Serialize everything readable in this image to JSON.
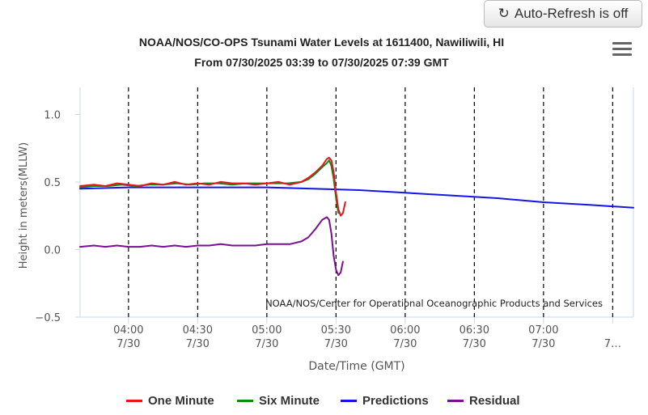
{
  "toolbar": {
    "auto_refresh_label": "Auto-Refresh is off",
    "refresh_icon": "refresh-icon",
    "menu_icon": "hamburger-menu-icon"
  },
  "chart_data": {
    "type": "line",
    "title": "NOAA/NOS/CO-OPS Tsunami Water Levels at 1611400, Nawiliwili, HI",
    "subtitle": "From 07/30/2025 03:39 to 07/30/2025 07:39 GMT",
    "xlabel": "Date/Time (GMT)",
    "ylabel": "Height in meters(MLLW)",
    "ylim": [
      -0.5,
      1.2
    ],
    "xlim": [
      "03:39",
      "07:39"
    ],
    "yticks": [
      {
        "value": -0.5,
        "label": "−0.5"
      },
      {
        "value": 0.0,
        "label": "0.0"
      },
      {
        "value": 0.5,
        "label": "0.5"
      },
      {
        "value": 1.0,
        "label": "1.0"
      }
    ],
    "xticks": [
      {
        "time": "04:00",
        "line1": "04:00",
        "line2": "7/30"
      },
      {
        "time": "04:30",
        "line1": "04:30",
        "line2": "7/30"
      },
      {
        "time": "05:00",
        "line1": "05:00",
        "line2": "7/30"
      },
      {
        "time": "05:30",
        "line1": "05:30",
        "line2": "7/30"
      },
      {
        "time": "06:00",
        "line1": "06:00",
        "line2": "7/30"
      },
      {
        "time": "06:30",
        "line1": "06:30",
        "line2": "7/30"
      },
      {
        "time": "07:00",
        "line1": "07:00",
        "line2": "7/30"
      },
      {
        "time": "07:30",
        "line1": "",
        "line2": "7…"
      }
    ],
    "vlines": [
      "04:00",
      "04:30",
      "05:00",
      "05:30",
      "06:00",
      "06:30",
      "07:00",
      "07:30"
    ],
    "credit": "NOAA/NOS/Center for Operational Oceanographic Products and Services",
    "legend_position": "bottom",
    "grid": false,
    "series": [
      {
        "name": "One Minute",
        "color": "#e8141b",
        "points": [
          [
            "03:39",
            0.47
          ],
          [
            "03:45",
            0.48
          ],
          [
            "03:50",
            0.47
          ],
          [
            "03:55",
            0.49
          ],
          [
            "04:00",
            0.48
          ],
          [
            "04:05",
            0.47
          ],
          [
            "04:10",
            0.49
          ],
          [
            "04:15",
            0.48
          ],
          [
            "04:20",
            0.5
          ],
          [
            "04:25",
            0.48
          ],
          [
            "04:30",
            0.49
          ],
          [
            "04:35",
            0.48
          ],
          [
            "04:40",
            0.5
          ],
          [
            "04:45",
            0.49
          ],
          [
            "04:50",
            0.49
          ],
          [
            "04:55",
            0.48
          ],
          [
            "05:00",
            0.49
          ],
          [
            "05:05",
            0.5
          ],
          [
            "05:10",
            0.48
          ],
          [
            "05:15",
            0.5
          ],
          [
            "05:18",
            0.53
          ],
          [
            "05:21",
            0.57
          ],
          [
            "05:24",
            0.62
          ],
          [
            "05:26",
            0.67
          ],
          [
            "05:27",
            0.68
          ],
          [
            "05:28",
            0.66
          ],
          [
            "05:29",
            0.57
          ],
          [
            "05:30",
            0.42
          ],
          [
            "05:31",
            0.3
          ],
          [
            "05:32",
            0.25
          ],
          [
            "05:33",
            0.27
          ],
          [
            "05:34",
            0.35
          ]
        ]
      },
      {
        "name": "Six Minute",
        "color": "#0f8a10",
        "points": [
          [
            "03:39",
            0.46
          ],
          [
            "03:45",
            0.47
          ],
          [
            "03:51",
            0.47
          ],
          [
            "03:57",
            0.48
          ],
          [
            "04:03",
            0.47
          ],
          [
            "04:09",
            0.48
          ],
          [
            "04:15",
            0.48
          ],
          [
            "04:21",
            0.49
          ],
          [
            "04:27",
            0.48
          ],
          [
            "04:33",
            0.49
          ],
          [
            "04:39",
            0.49
          ],
          [
            "04:45",
            0.48
          ],
          [
            "04:51",
            0.49
          ],
          [
            "04:57",
            0.49
          ],
          [
            "05:03",
            0.49
          ],
          [
            "05:09",
            0.49
          ],
          [
            "05:15",
            0.5
          ],
          [
            "05:18",
            0.52
          ],
          [
            "05:21",
            0.56
          ],
          [
            "05:24",
            0.61
          ],
          [
            "05:26",
            0.64
          ],
          [
            "05:27",
            0.66
          ],
          [
            "05:28",
            0.62
          ],
          [
            "05:29",
            0.52
          ],
          [
            "05:30",
            0.38
          ],
          [
            "05:31",
            0.27
          ]
        ]
      },
      {
        "name": "Predictions",
        "color": "#1515e8",
        "points": [
          [
            "03:39",
            0.45
          ],
          [
            "04:00",
            0.46
          ],
          [
            "04:30",
            0.46
          ],
          [
            "05:00",
            0.46
          ],
          [
            "05:20",
            0.45
          ],
          [
            "05:40",
            0.44
          ],
          [
            "06:00",
            0.42
          ],
          [
            "06:20",
            0.4
          ],
          [
            "06:40",
            0.38
          ],
          [
            "07:00",
            0.35
          ],
          [
            "07:20",
            0.33
          ],
          [
            "07:39",
            0.31
          ]
        ]
      },
      {
        "name": "Residual",
        "color": "#7a0f91",
        "points": [
          [
            "03:39",
            0.02
          ],
          [
            "03:45",
            0.03
          ],
          [
            "03:50",
            0.02
          ],
          [
            "03:55",
            0.03
          ],
          [
            "04:00",
            0.02
          ],
          [
            "04:05",
            0.02
          ],
          [
            "04:10",
            0.03
          ],
          [
            "04:15",
            0.02
          ],
          [
            "04:20",
            0.03
          ],
          [
            "04:25",
            0.02
          ],
          [
            "04:30",
            0.03
          ],
          [
            "04:35",
            0.03
          ],
          [
            "04:40",
            0.04
          ],
          [
            "04:45",
            0.03
          ],
          [
            "04:50",
            0.03
          ],
          [
            "04:55",
            0.03
          ],
          [
            "05:00",
            0.04
          ],
          [
            "05:05",
            0.04
          ],
          [
            "05:10",
            0.04
          ],
          [
            "05:15",
            0.06
          ],
          [
            "05:18",
            0.09
          ],
          [
            "05:21",
            0.15
          ],
          [
            "05:24",
            0.22
          ],
          [
            "05:26",
            0.24
          ],
          [
            "05:27",
            0.22
          ],
          [
            "05:28",
            0.12
          ],
          [
            "05:29",
            -0.05
          ],
          [
            "05:30",
            -0.15
          ],
          [
            "05:31",
            -0.19
          ],
          [
            "05:32",
            -0.17
          ],
          [
            "05:33",
            -0.09
          ]
        ]
      }
    ]
  }
}
